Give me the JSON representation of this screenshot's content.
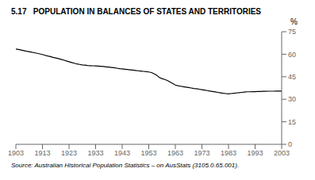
{
  "chart_data": {
    "type": "line",
    "title": "5.17   POPULATION IN BALANCES OF STATES AND TERRITORIES",
    "ylabel": "%",
    "source": "Source: Australian Historical Population Statistics – on AusStats (3105.0.65.001).",
    "xlim": [
      1903,
      2003
    ],
    "ylim": [
      0,
      75
    ],
    "yticks": [
      0,
      15,
      30,
      45,
      60,
      75
    ],
    "xticks": [
      1903,
      1913,
      1923,
      1933,
      1943,
      1953,
      1963,
      1973,
      1983,
      1993,
      2003
    ],
    "color": "#000000",
    "grid": false,
    "x": [
      1903,
      1904,
      1905,
      1906,
      1907,
      1908,
      1909,
      1910,
      1911,
      1912,
      1913,
      1914,
      1915,
      1916,
      1917,
      1918,
      1919,
      1920,
      1921,
      1922,
      1923,
      1924,
      1925,
      1926,
      1927,
      1928,
      1929,
      1930,
      1931,
      1932,
      1933,
      1934,
      1935,
      1936,
      1937,
      1938,
      1939,
      1940,
      1941,
      1942,
      1943,
      1944,
      1945,
      1946,
      1947,
      1948,
      1949,
      1950,
      1951,
      1952,
      1953,
      1954,
      1955,
      1956,
      1957,
      1958,
      1959,
      1960,
      1961,
      1962,
      1963,
      1964,
      1965,
      1966,
      1967,
      1968,
      1969,
      1970,
      1971,
      1972,
      1973,
      1974,
      1975,
      1976,
      1977,
      1978,
      1979,
      1980,
      1981,
      1982,
      1983,
      1984,
      1985,
      1986,
      1987,
      1988,
      1989,
      1990,
      1991,
      1992,
      1993,
      1994,
      1995,
      1996,
      1997,
      1998,
      1999,
      2000,
      2001,
      2002,
      2003
    ],
    "values": [
      63.5,
      63.2,
      62.8,
      62.4,
      62.0,
      61.7,
      61.3,
      61.0,
      60.6,
      60.2,
      59.8,
      59.3,
      58.8,
      58.4,
      57.9,
      57.5,
      57.1,
      56.6,
      56.1,
      55.5,
      55.0,
      54.5,
      54.0,
      53.5,
      53.2,
      52.9,
      52.7,
      52.5,
      52.4,
      52.3,
      52.2,
      52.1,
      52.0,
      51.8,
      51.6,
      51.4,
      51.2,
      51.0,
      50.7,
      50.4,
      50.2,
      50.0,
      49.8,
      49.6,
      49.4,
      49.2,
      49.0,
      48.8,
      48.6,
      48.4,
      48.2,
      47.8,
      47.0,
      46.0,
      44.5,
      43.8,
      43.2,
      42.5,
      41.5,
      40.5,
      39.5,
      39.0,
      38.7,
      38.4,
      38.1,
      37.8,
      37.5,
      37.2,
      37.0,
      36.7,
      36.4,
      36.1,
      35.8,
      35.5,
      35.2,
      34.9,
      34.6,
      34.3,
      34.0,
      33.8,
      33.6,
      33.8,
      34.0,
      34.2,
      34.4,
      34.6,
      34.8,
      35.0,
      35.0,
      35.1,
      35.1,
      35.2,
      35.2,
      35.3,
      35.3,
      35.4,
      35.4,
      35.4,
      35.5,
      35.5,
      35.5
    ]
  }
}
